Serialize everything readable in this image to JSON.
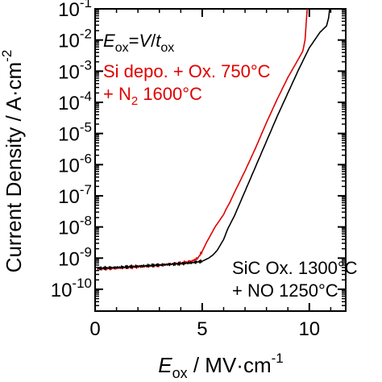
{
  "chart_data": {
    "type": "line",
    "title": "",
    "xlabel": {
      "main": "E",
      "sub": "ox",
      "rest": " / MV·cm",
      "sup": "-1"
    },
    "ylabel": {
      "text": "Current Density / A·cm",
      "sup": "-2"
    },
    "xlim": [
      0,
      11.7
    ],
    "ylim_log10": [
      -10.7,
      -1
    ],
    "y_scale": "log",
    "x_ticks": [
      {
        "value": 0,
        "label": "0"
      },
      {
        "value": 5,
        "label": "5"
      },
      {
        "value": 10,
        "label": "10"
      }
    ],
    "y_ticks": [
      {
        "exp": -1,
        "base": "10",
        "sup": "-1"
      },
      {
        "exp": -2,
        "base": "10",
        "sup": "-2"
      },
      {
        "exp": -3,
        "base": "10",
        "sup": "-3"
      },
      {
        "exp": -4,
        "base": "10",
        "sup": "-4"
      },
      {
        "exp": -5,
        "base": "10",
        "sup": "-5"
      },
      {
        "exp": -6,
        "base": "10",
        "sup": "-6"
      },
      {
        "exp": -7,
        "base": "10",
        "sup": "-7"
      },
      {
        "exp": -8,
        "base": "10",
        "sup": "-8"
      },
      {
        "exp": -9,
        "base": "10",
        "sup": "-9"
      },
      {
        "exp": -10,
        "base": "10",
        "sup": "-10"
      }
    ],
    "grid": false,
    "annotations": {
      "formula": {
        "e": "E",
        "ox": "ox",
        "eq": "=",
        "v": "V",
        "slash": "/",
        "t": "t",
        "tox": "ox"
      },
      "red_label_line1": "Si depo. + Ox. 750°C",
      "red_label_line2_pre": "+ N",
      "red_label_line2_sub": "2",
      "red_label_line2_post": " 1600°C",
      "black_label_line1": "SiC Ox. 1300°C",
      "black_label_line2": "+ NO 1250°C"
    },
    "series": [
      {
        "color": "#e00000",
        "x": [
          0.1,
          1.0,
          2.0,
          3.0,
          4.0,
          4.5,
          4.8,
          5.0,
          5.2,
          5.4,
          5.6,
          5.8,
          6.0,
          6.1,
          6.3,
          6.5,
          7.0,
          7.5,
          8.0,
          8.5,
          9.0,
          9.5,
          9.7,
          9.8,
          9.85,
          9.9
        ],
        "log10_y": [
          -9.35,
          -9.32,
          -9.28,
          -9.23,
          -9.16,
          -9.1,
          -9.0,
          -8.78,
          -8.5,
          -8.25,
          -8.0,
          -7.8,
          -7.6,
          -7.45,
          -7.2,
          -6.9,
          -6.2,
          -5.45,
          -4.65,
          -3.9,
          -3.2,
          -2.6,
          -2.35,
          -2.0,
          -1.5,
          -1.0
        ]
      },
      {
        "color": "#000000",
        "x": [
          0.1,
          1.0,
          2.0,
          3.0,
          4.0,
          4.5,
          5.0,
          5.3,
          5.5,
          5.7,
          6.0,
          6.2,
          6.5,
          7.0,
          7.5,
          8.0,
          8.5,
          9.0,
          9.5,
          10.0,
          10.5,
          10.8,
          10.9,
          10.95
        ],
        "log10_y": [
          -9.33,
          -9.3,
          -9.26,
          -9.22,
          -9.18,
          -9.15,
          -9.1,
          -9.0,
          -8.9,
          -8.75,
          -8.4,
          -8.05,
          -7.65,
          -6.85,
          -6.05,
          -5.25,
          -4.45,
          -3.7,
          -2.95,
          -2.25,
          -1.75,
          -1.55,
          -1.3,
          -1.0
        ]
      }
    ]
  }
}
